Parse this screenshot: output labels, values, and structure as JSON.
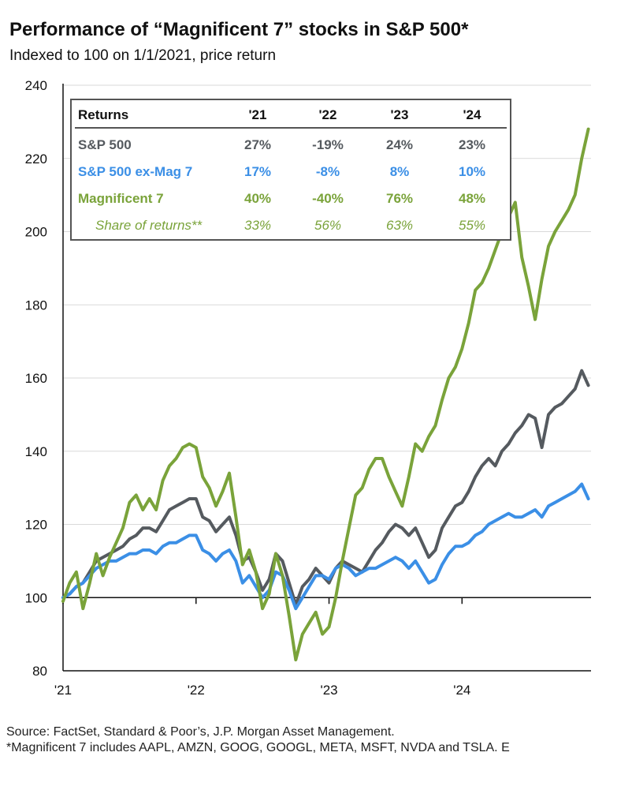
{
  "title": "Performance of “Magnificent 7” stocks in S&P 500*",
  "subtitle": "Indexed to 100 on 1/1/2021, price return",
  "colors": {
    "sp500": "#555a5f",
    "ex_mag7": "#3b8fe6",
    "mag7": "#7aa33a",
    "share": "#7aa33a"
  },
  "table": {
    "headers": [
      "Returns",
      "'21",
      "'22",
      "'23",
      "'24"
    ],
    "rows": [
      {
        "label": "S&P 500",
        "values": [
          "27%",
          "-19%",
          "24%",
          "23%"
        ],
        "style": "sp500"
      },
      {
        "label": "S&P 500 ex-Mag 7",
        "values": [
          "17%",
          "-8%",
          "8%",
          "10%"
        ],
        "style": "ex_mag7"
      },
      {
        "label": "Magnificent 7",
        "values": [
          "40%",
          "-40%",
          "76%",
          "48%"
        ],
        "style": "mag7"
      },
      {
        "label": "Share of returns**",
        "values": [
          "33%",
          "56%",
          "63%",
          "55%"
        ],
        "style": "share"
      }
    ]
  },
  "chart_data": {
    "type": "line",
    "title": "Performance of “Magnificent 7” stocks in S&P 500*",
    "xlabel": "",
    "ylabel": "",
    "ylim": [
      80,
      240
    ],
    "xlim": [
      2021.0,
      2024.97
    ],
    "yticks": [
      80,
      100,
      120,
      140,
      160,
      180,
      200,
      220,
      240
    ],
    "xticks": [
      {
        "value": 2021,
        "label": "'21"
      },
      {
        "value": 2022,
        "label": "'22"
      },
      {
        "value": 2023,
        "label": "'23"
      },
      {
        "value": 2024,
        "label": "'24"
      }
    ],
    "baseline": 100,
    "series": [
      {
        "name": "S&P 500",
        "key": "sp500",
        "x": [
          2021.0,
          2021.05,
          2021.1,
          2021.15,
          2021.2,
          2021.25,
          2021.3,
          2021.35,
          2021.4,
          2021.45,
          2021.5,
          2021.55,
          2021.6,
          2021.65,
          2021.7,
          2021.75,
          2021.8,
          2021.85,
          2021.9,
          2021.95,
          2022.0,
          2022.05,
          2022.1,
          2022.15,
          2022.2,
          2022.25,
          2022.3,
          2022.35,
          2022.4,
          2022.45,
          2022.5,
          2022.55,
          2022.6,
          2022.65,
          2022.7,
          2022.75,
          2022.8,
          2022.85,
          2022.9,
          2022.95,
          2023.0,
          2023.05,
          2023.1,
          2023.15,
          2023.2,
          2023.25,
          2023.3,
          2023.35,
          2023.4,
          2023.45,
          2023.5,
          2023.55,
          2023.6,
          2023.65,
          2023.7,
          2023.75,
          2023.8,
          2023.85,
          2023.9,
          2023.95,
          2024.0,
          2024.05,
          2024.1,
          2024.15,
          2024.2,
          2024.25,
          2024.3,
          2024.35,
          2024.4,
          2024.45,
          2024.5,
          2024.55,
          2024.6,
          2024.65,
          2024.7,
          2024.75,
          2024.8,
          2024.85,
          2024.9,
          2024.95
        ],
        "values": [
          100,
          101,
          103,
          104,
          107,
          110,
          111,
          112,
          113,
          114,
          116,
          117,
          119,
          119,
          118,
          121,
          124,
          125,
          126,
          127,
          127,
          122,
          121,
          118,
          120,
          122,
          117,
          110,
          111,
          107,
          102,
          105,
          112,
          110,
          104,
          98,
          103,
          105,
          108,
          106,
          104,
          108,
          110,
          109,
          108,
          107,
          110,
          113,
          115,
          118,
          120,
          119,
          117,
          119,
          115,
          111,
          113,
          119,
          122,
          125,
          126,
          129,
          133,
          136,
          138,
          136,
          140,
          142,
          145,
          147,
          150,
          149,
          141,
          150,
          152,
          153,
          155,
          157,
          162,
          158
        ]
      },
      {
        "name": "S&P 500 ex-Mag 7",
        "key": "ex_mag7",
        "x": [
          2021.0,
          2021.05,
          2021.1,
          2021.15,
          2021.2,
          2021.25,
          2021.3,
          2021.35,
          2021.4,
          2021.45,
          2021.5,
          2021.55,
          2021.6,
          2021.65,
          2021.7,
          2021.75,
          2021.8,
          2021.85,
          2021.9,
          2021.95,
          2022.0,
          2022.05,
          2022.1,
          2022.15,
          2022.2,
          2022.25,
          2022.3,
          2022.35,
          2022.4,
          2022.45,
          2022.5,
          2022.55,
          2022.6,
          2022.65,
          2022.7,
          2022.75,
          2022.8,
          2022.85,
          2022.9,
          2022.95,
          2023.0,
          2023.05,
          2023.1,
          2023.15,
          2023.2,
          2023.25,
          2023.3,
          2023.35,
          2023.4,
          2023.45,
          2023.5,
          2023.55,
          2023.6,
          2023.65,
          2023.7,
          2023.75,
          2023.8,
          2023.85,
          2023.9,
          2023.95,
          2024.0,
          2024.05,
          2024.1,
          2024.15,
          2024.2,
          2024.25,
          2024.3,
          2024.35,
          2024.4,
          2024.45,
          2024.5,
          2024.55,
          2024.6,
          2024.65,
          2024.7,
          2024.75,
          2024.8,
          2024.85,
          2024.9,
          2024.95
        ],
        "values": [
          100,
          101,
          103,
          104,
          106,
          108,
          109,
          110,
          110,
          111,
          112,
          112,
          113,
          113,
          112,
          114,
          115,
          115,
          116,
          117,
          117,
          113,
          112,
          110,
          112,
          113,
          110,
          104,
          106,
          103,
          100,
          102,
          107,
          106,
          102,
          97,
          100,
          103,
          106,
          106,
          105,
          108,
          109,
          108,
          106,
          107,
          108,
          108,
          109,
          110,
          111,
          110,
          108,
          110,
          107,
          104,
          105,
          109,
          112,
          114,
          114,
          115,
          117,
          118,
          120,
          121,
          122,
          123,
          122,
          122,
          123,
          124,
          122,
          125,
          126,
          127,
          128,
          129,
          131,
          127
        ]
      },
      {
        "name": "Magnificent 7",
        "key": "mag7",
        "x": [
          2021.0,
          2021.05,
          2021.1,
          2021.15,
          2021.2,
          2021.25,
          2021.3,
          2021.35,
          2021.4,
          2021.45,
          2021.5,
          2021.55,
          2021.6,
          2021.65,
          2021.7,
          2021.75,
          2021.8,
          2021.85,
          2021.9,
          2021.95,
          2022.0,
          2022.05,
          2022.1,
          2022.15,
          2022.2,
          2022.25,
          2022.3,
          2022.35,
          2022.4,
          2022.45,
          2022.5,
          2022.55,
          2022.6,
          2022.65,
          2022.7,
          2022.75,
          2022.8,
          2022.85,
          2022.9,
          2022.95,
          2023.0,
          2023.05,
          2023.1,
          2023.15,
          2023.2,
          2023.25,
          2023.3,
          2023.35,
          2023.4,
          2023.45,
          2023.5,
          2023.55,
          2023.6,
          2023.65,
          2023.7,
          2023.75,
          2023.8,
          2023.85,
          2023.9,
          2023.95,
          2024.0,
          2024.05,
          2024.1,
          2024.15,
          2024.2,
          2024.25,
          2024.3,
          2024.35,
          2024.4,
          2024.45,
          2024.5,
          2024.55,
          2024.6,
          2024.65,
          2024.7,
          2024.75,
          2024.8,
          2024.85,
          2024.9,
          2024.95
        ],
        "values": [
          99,
          104,
          107,
          97,
          104,
          112,
          106,
          111,
          115,
          119,
          126,
          128,
          124,
          127,
          124,
          132,
          136,
          138,
          141,
          142,
          141,
          133,
          130,
          125,
          129,
          134,
          122,
          109,
          113,
          107,
          97,
          101,
          112,
          106,
          95,
          83,
          90,
          93,
          96,
          90,
          92,
          100,
          110,
          119,
          128,
          130,
          135,
          138,
          138,
          133,
          129,
          125,
          133,
          142,
          140,
          144,
          147,
          154,
          160,
          163,
          168,
          175,
          184,
          186,
          190,
          195,
          200,
          204,
          208,
          193,
          185,
          176,
          187,
          196,
          200,
          203,
          206,
          210,
          220,
          228
        ]
      }
    ]
  },
  "footer": {
    "source": "Source: FactSet, Standard & Poor’s, J.P. Morgan Asset Management.",
    "note": "*Magnificent 7 includes AAPL, AMZN, GOOG, GOOGL, META, MSFT, NVDA and TSLA. E"
  }
}
